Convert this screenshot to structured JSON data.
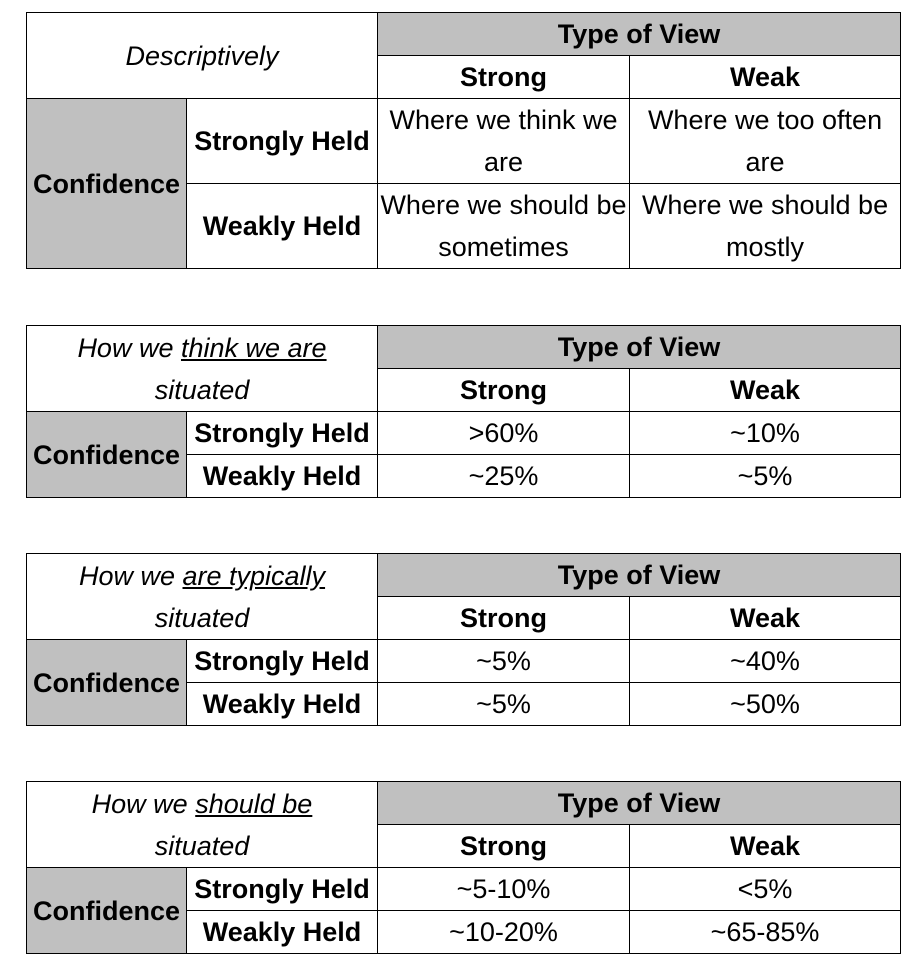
{
  "tables": [
    {
      "caption_lines": [
        "Descriptively"
      ],
      "caption_mixed": false,
      "header": "Type of View",
      "columns": [
        "Strong",
        "Weak"
      ],
      "row_group": "Confidence",
      "rows": [
        {
          "label": "Strongly Held",
          "cells": [
            "Where we think we are",
            "Where we too often are"
          ]
        },
        {
          "label": "Weakly Held",
          "cells": [
            "Where we should be sometimes",
            "Where we should be mostly"
          ]
        }
      ]
    },
    {
      "caption_prefix": "How we",
      "caption_underlined": "think we are",
      "caption_suffix": "situated",
      "header": "Type of View",
      "columns": [
        "Strong",
        "Weak"
      ],
      "row_group": "Confidence",
      "rows": [
        {
          "label": "Strongly Held",
          "cells": [
            ">60%",
            "~10%"
          ]
        },
        {
          "label": "Weakly Held",
          "cells": [
            "~25%",
            "~5%"
          ]
        }
      ]
    },
    {
      "caption_prefix": "How we",
      "caption_underlined": "are typically",
      "caption_suffix": "situated",
      "header": "Type of View",
      "columns": [
        "Strong",
        "Weak"
      ],
      "row_group": "Confidence",
      "rows": [
        {
          "label": "Strongly Held",
          "cells": [
            "~5%",
            "~40%"
          ]
        },
        {
          "label": "Weakly Held",
          "cells": [
            "~5%",
            "~50%"
          ]
        }
      ]
    },
    {
      "caption_prefix": "How we",
      "caption_underlined": "should be",
      "caption_suffix": "situated",
      "header": "Type of View",
      "columns": [
        "Strong",
        "Weak"
      ],
      "row_group": "Confidence",
      "rows": [
        {
          "label": "Strongly Held",
          "cells": [
            "~5-10%",
            "<5%"
          ]
        },
        {
          "label": "Weakly Held",
          "cells": [
            "~10-20%",
            "~65-85%"
          ]
        }
      ]
    }
  ],
  "colors": {
    "header_gray": "#c0c0c0",
    "border": "#000000"
  }
}
